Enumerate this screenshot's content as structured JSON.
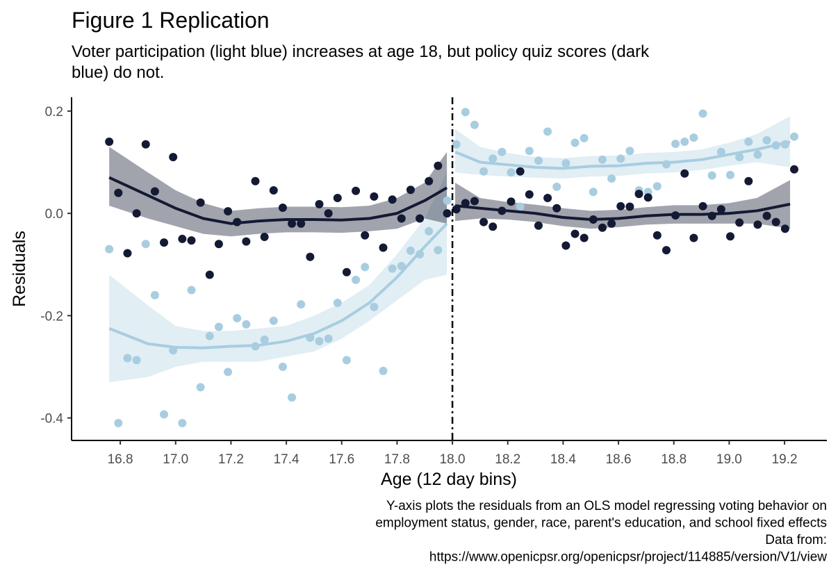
{
  "chart_data": {
    "type": "scatter",
    "title": "Figure 1 Replication",
    "subtitle": "Voter participation (light blue) increases at age 18, but policy quiz scores (dark blue) do not.",
    "x_label": "Age (12 day bins)",
    "y_label": "Residuals",
    "caption": [
      "Y-axis plots the residuals from an OLS model regressing voting behavior on",
      "employment status, gender, race, parent's education, and school fixed effects",
      "Data from:",
      "https://www.openicpsr.org/openicpsr/project/114885/version/V1/view"
    ],
    "xlim": [
      16.624,
      19.353
    ],
    "ylim": [
      -0.444,
      0.227
    ],
    "xticks": [
      16.8,
      {
        "value": 17.0,
        "label": "17.0"
      },
      17.2,
      17.4,
      17.6,
      17.8,
      {
        "value": 18.0,
        "label": "18.0"
      },
      18.2,
      18.4,
      18.6,
      18.8,
      {
        "value": 19.0,
        "label": "19.0"
      },
      19.2
    ],
    "yticks": [
      0.2,
      {
        "value": 0.0,
        "label": "0.0"
      },
      -0.2,
      -0.4
    ],
    "vline": 18,
    "x": [
      16.76,
      16.793,
      16.826,
      16.859,
      16.892,
      16.925,
      16.958,
      16.991,
      17.024,
      17.057,
      17.09,
      17.123,
      17.156,
      17.189,
      17.222,
      17.255,
      17.288,
      17.321,
      17.354,
      17.387,
      17.42,
      17.453,
      17.486,
      17.519,
      17.552,
      17.585,
      17.618,
      17.651,
      17.684,
      17.717,
      17.75,
      17.783,
      17.816,
      17.849,
      17.882,
      17.915,
      17.948,
      17.981,
      18.014,
      18.047,
      18.08,
      18.113,
      18.146,
      18.179,
      18.212,
      18.245,
      18.278,
      18.311,
      18.344,
      18.377,
      18.41,
      18.443,
      18.476,
      18.509,
      18.542,
      18.575,
      18.608,
      18.641,
      18.674,
      18.707,
      18.74,
      18.773,
      18.806,
      18.839,
      18.872,
      18.905,
      18.938,
      18.971,
      19.004,
      19.037,
      19.07,
      19.103,
      19.136,
      19.169,
      19.202,
      19.235
    ],
    "series": [
      {
        "color": "#a8cde0",
        "values": [
          -0.07,
          -0.41,
          -0.283,
          -0.287,
          -0.06,
          -0.16,
          -0.393,
          -0.268,
          -0.41,
          -0.15,
          -0.34,
          -0.24,
          -0.222,
          -0.31,
          -0.205,
          -0.217,
          -0.26,
          -0.247,
          -0.21,
          -0.3,
          -0.36,
          -0.178,
          -0.243,
          -0.25,
          -0.245,
          -0.175,
          -0.287,
          -0.13,
          -0.105,
          -0.183,
          -0.308,
          -0.108,
          -0.103,
          -0.073,
          -0.08,
          -0.035,
          -0.072,
          0.025,
          0.135,
          0.198,
          0.173,
          0.082,
          0.107,
          0.12,
          0.08,
          0.013,
          0.122,
          0.103,
          0.16,
          0.052,
          0.098,
          0.138,
          0.147,
          0.042,
          0.105,
          0.068,
          0.107,
          0.122,
          0.045,
          0.042,
          0.053,
          0.096,
          0.136,
          0.14,
          0.148,
          0.195,
          0.074,
          0.12,
          0.075,
          0.11,
          0.14,
          0.115,
          0.143,
          0.133,
          0.135,
          0.15
        ]
      },
      {
        "color": "#141a33",
        "values": [
          0.14,
          0.04,
          -0.078,
          0.0,
          0.135,
          0.043,
          -0.057,
          0.11,
          -0.05,
          -0.053,
          0.021,
          -0.12,
          -0.06,
          0.004,
          -0.017,
          -0.055,
          0.063,
          -0.046,
          0.045,
          0.011,
          -0.02,
          -0.02,
          -0.085,
          0.018,
          0.0,
          0.03,
          -0.115,
          0.044,
          -0.043,
          0.033,
          -0.067,
          0.027,
          -0.01,
          0.046,
          -0.01,
          0.063,
          0.093,
          0.0,
          0.008,
          0.02,
          0.024,
          -0.017,
          -0.026,
          0.005,
          0.023,
          0.082,
          0.037,
          -0.024,
          0.03,
          0.01,
          -0.063,
          -0.04,
          -0.048,
          -0.012,
          -0.028,
          -0.02,
          0.014,
          0.013,
          0.038,
          0.031,
          -0.043,
          -0.072,
          -0.004,
          0.078,
          -0.048,
          0.014,
          -0.005,
          0.008,
          -0.045,
          -0.018,
          0.063,
          -0.022,
          -0.005,
          -0.017,
          -0.03,
          0.086
        ]
      }
    ],
    "fits": [
      {
        "color": "#a8cde0",
        "x": [
          16.76,
          16.9,
          17.0,
          17.1,
          17.2,
          17.3,
          17.4,
          17.5,
          17.6,
          17.7,
          17.8,
          17.9,
          17.98
        ],
        "values": [
          -0.225,
          -0.255,
          -0.262,
          -0.263,
          -0.26,
          -0.258,
          -0.25,
          -0.235,
          -0.21,
          -0.175,
          -0.125,
          -0.065,
          -0.02
        ],
        "lower": [
          -0.33,
          -0.32,
          -0.3,
          -0.29,
          -0.29,
          -0.29,
          -0.28,
          -0.27,
          -0.245,
          -0.21,
          -0.17,
          -0.13,
          -0.12
        ],
        "upper": [
          -0.12,
          -0.18,
          -0.22,
          -0.23,
          -0.23,
          -0.225,
          -0.22,
          -0.2,
          -0.175,
          -0.14,
          -0.08,
          -0.01,
          0.08
        ]
      },
      {
        "color": "#141a33",
        "x": [
          16.76,
          16.9,
          17.0,
          17.1,
          17.2,
          17.3,
          17.4,
          17.5,
          17.6,
          17.7,
          17.8,
          17.9,
          17.98
        ],
        "values": [
          0.07,
          0.035,
          0.01,
          -0.01,
          -0.02,
          -0.015,
          -0.012,
          -0.012,
          -0.013,
          -0.01,
          0.0,
          0.025,
          0.05
        ],
        "lower": [
          0.015,
          -0.01,
          -0.025,
          -0.04,
          -0.045,
          -0.04,
          -0.037,
          -0.037,
          -0.038,
          -0.035,
          -0.03,
          -0.01,
          -0.02
        ],
        "upper": [
          0.13,
          0.08,
          0.045,
          0.02,
          0.005,
          0.01,
          0.013,
          0.013,
          0.012,
          0.015,
          0.03,
          0.06,
          0.12
        ]
      },
      {
        "color": "#a8cde0",
        "x": [
          18.01,
          18.1,
          18.2,
          18.3,
          18.4,
          18.5,
          18.6,
          18.7,
          18.8,
          18.9,
          19.0,
          19.1,
          19.22
        ],
        "values": [
          0.12,
          0.1,
          0.095,
          0.09,
          0.088,
          0.092,
          0.093,
          0.098,
          0.1,
          0.105,
          0.115,
          0.125,
          0.14
        ],
        "lower": [
          0.08,
          0.075,
          0.072,
          0.07,
          0.068,
          0.072,
          0.073,
          0.078,
          0.08,
          0.085,
          0.093,
          0.1,
          0.09
        ],
        "upper": [
          0.165,
          0.13,
          0.118,
          0.11,
          0.108,
          0.112,
          0.113,
          0.118,
          0.12,
          0.125,
          0.138,
          0.155,
          0.19
        ]
      },
      {
        "color": "#141a33",
        "x": [
          18.01,
          18.1,
          18.2,
          18.3,
          18.4,
          18.5,
          18.6,
          18.7,
          18.8,
          18.9,
          19.0,
          19.1,
          19.22
        ],
        "values": [
          0.015,
          0.01,
          0.005,
          0.0,
          -0.008,
          -0.012,
          -0.01,
          -0.005,
          -0.002,
          -0.002,
          0.0,
          0.005,
          0.018
        ],
        "lower": [
          -0.015,
          -0.01,
          -0.012,
          -0.017,
          -0.025,
          -0.03,
          -0.027,
          -0.022,
          -0.02,
          -0.02,
          -0.02,
          -0.02,
          -0.03
        ],
        "upper": [
          0.06,
          0.03,
          0.022,
          0.017,
          0.01,
          0.005,
          0.007,
          0.012,
          0.016,
          0.016,
          0.02,
          0.03,
          0.065
        ]
      }
    ]
  }
}
